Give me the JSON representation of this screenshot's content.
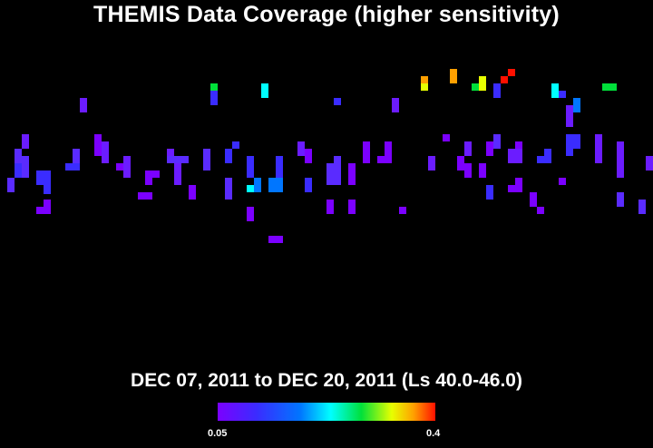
{
  "title": "THEMIS Data Coverage (higher sensitivity)",
  "date_range": "DEC 07, 2011 to DEC 20, 2011 (Ls 40.0-46.0)",
  "colorbar": {
    "min_label": "0.05",
    "max_label": "0.4",
    "colors": [
      "#7b00ff",
      "#3a2cff",
      "#0076ff",
      "#00ffff",
      "#00e03a",
      "#e8ff00",
      "#ffa000",
      "#ff1000"
    ]
  }
}
